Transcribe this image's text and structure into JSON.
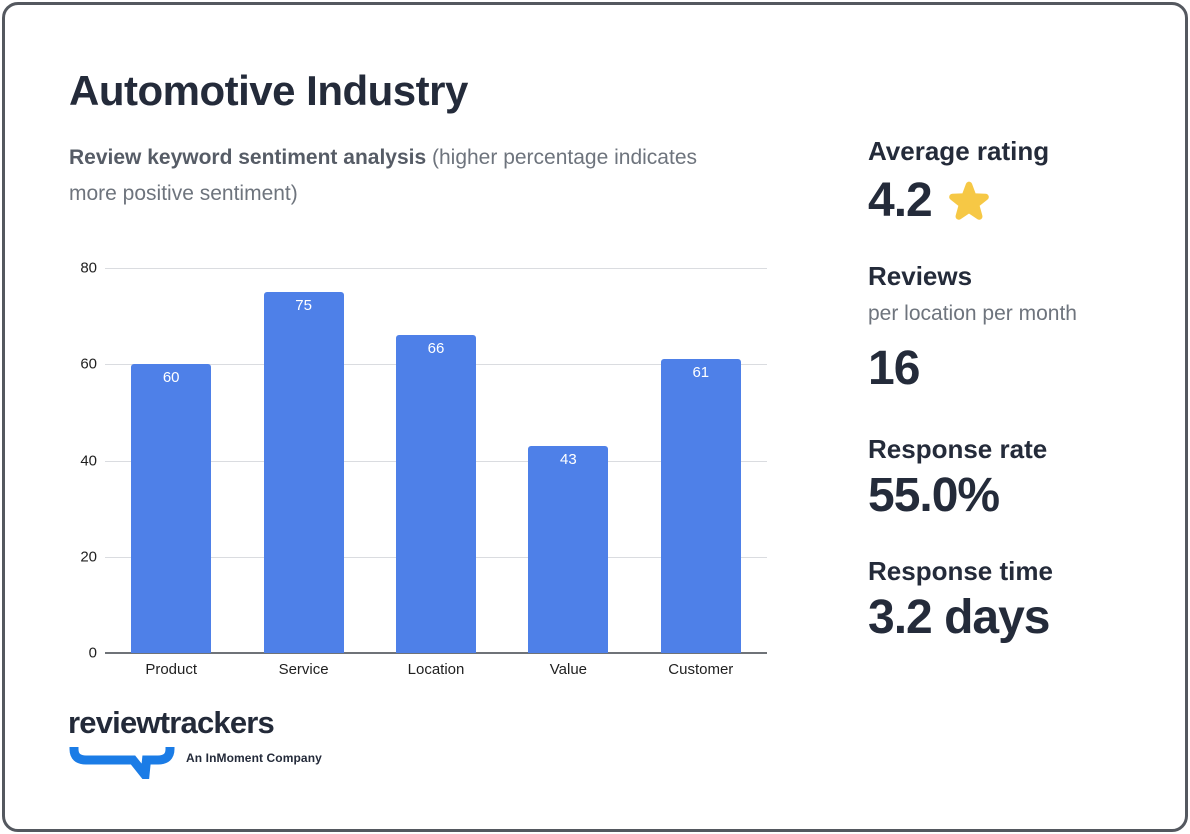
{
  "header": {
    "title": "Automotive Industry",
    "subtitle_bold": "Review keyword sentiment analysis",
    "subtitle_rest": " (higher percentage indicates more positive sentiment)"
  },
  "chart_data": {
    "type": "bar",
    "categories": [
      "Product",
      "Service",
      "Location",
      "Value",
      "Customer"
    ],
    "values": [
      60,
      75,
      66,
      43,
      61
    ],
    "title": "",
    "xlabel": "",
    "ylabel": "",
    "ylim": [
      0,
      80
    ],
    "yticks": [
      0,
      20,
      40,
      60,
      80
    ],
    "grid": true,
    "legend": false,
    "bar_color": "#4e80e8",
    "value_label_color": "#ffffff"
  },
  "stats": [
    {
      "label": "Average rating",
      "value": "4.2",
      "icon": "star"
    },
    {
      "label": "Reviews",
      "sublabel": "per location per month",
      "value": "16"
    },
    {
      "label": "Response rate",
      "value": "55.0%"
    },
    {
      "label": "Response time",
      "value": "3.2 days"
    }
  ],
  "footer": {
    "logo_text": "reviewtrackers",
    "tagline": "An InMoment Company"
  },
  "colors": {
    "ink": "#242b3a",
    "muted_text": "#6e747d",
    "bar_blue": "#4e80e8",
    "logo_blue": "#1b7ce6",
    "star_gold": "#f6c845",
    "card_border": "#54585f",
    "gridline": "#dadce0",
    "axis_line": "#6f7378"
  }
}
